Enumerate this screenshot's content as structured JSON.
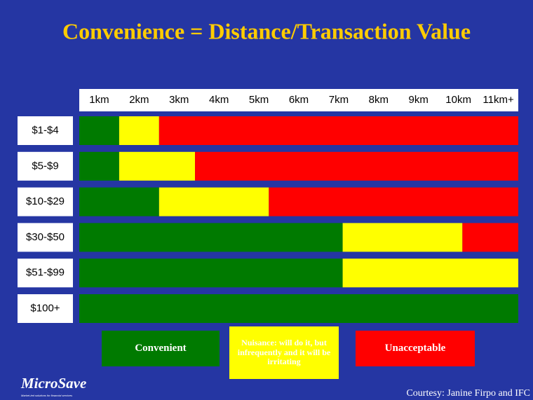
{
  "chart_data": {
    "type": "stacked_barh",
    "title": "Convenience = Distance/Transaction Value",
    "column_labels": [
      "1km",
      "2km",
      "3km",
      "4km",
      "5km",
      "6km",
      "7km",
      "8km",
      "9km",
      "10km",
      "11km+"
    ],
    "categories": [
      "$1-$4",
      "$5-$9",
      "$10-$29",
      "$30-$50",
      "$51-$99",
      "$100+"
    ],
    "xlim": [
      0,
      11
    ],
    "series": [
      {
        "name": "Convenient",
        "color": "#007a00",
        "values": [
          1,
          1,
          2,
          6.6,
          6.6,
          11
        ]
      },
      {
        "name": "Nuisance: will do it, but infrequently and it will be irritating",
        "color": "#ffff00",
        "values": [
          1,
          1.9,
          2.75,
          3,
          4.4,
          0
        ]
      },
      {
        "name": "Unacceptable",
        "color": "#ff0000",
        "values": [
          9,
          8.1,
          6.25,
          1.4,
          0,
          0
        ]
      }
    ],
    "logo": "MicroSave",
    "tagline": "Market-led solutions for financial services",
    "credit": "Courtesy: Janine Firpo and IFC"
  }
}
